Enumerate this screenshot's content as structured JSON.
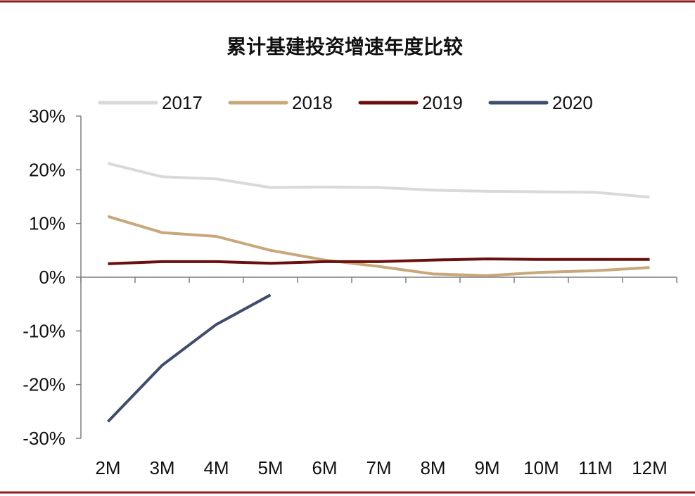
{
  "colors": {
    "frame": "#8b1a1a",
    "axis": "#7f7f7f"
  },
  "chart_data": {
    "type": "line",
    "title": "累计基建投资增速年度比较",
    "categories": [
      "2M",
      "3M",
      "4M",
      "5M",
      "6M",
      "7M",
      "8M",
      "9M",
      "10M",
      "11M",
      "12M"
    ],
    "ylim": [
      -30,
      30
    ],
    "ytick_values": [
      30,
      20,
      10,
      0,
      -10,
      -20,
      -30
    ],
    "ytick_labels": [
      "30%",
      "20%",
      "10%",
      "0%",
      "-10%",
      "-20%",
      "-30%"
    ],
    "grid": false,
    "legend_position": "top",
    "series": [
      {
        "name": "2017",
        "color": "#d9d9d9",
        "values": [
          21.2,
          18.7,
          18.3,
          16.7,
          16.8,
          16.7,
          16.2,
          16.0,
          15.9,
          15.8,
          14.9
        ]
      },
      {
        "name": "2018",
        "color": "#c8a77a",
        "values": [
          11.3,
          8.3,
          7.6,
          5.0,
          3.2,
          2.0,
          0.6,
          0.3,
          0.9,
          1.2,
          1.8
        ]
      },
      {
        "name": "2019",
        "color": "#6b0e0e",
        "values": [
          2.5,
          2.9,
          2.9,
          2.6,
          2.9,
          2.9,
          3.2,
          3.4,
          3.3,
          3.3,
          3.3
        ]
      },
      {
        "name": "2020",
        "color": "#3f4c6b",
        "values": [
          -26.9,
          -16.4,
          -8.8,
          -3.3,
          null,
          null,
          null,
          null,
          null,
          null,
          null
        ]
      }
    ]
  }
}
